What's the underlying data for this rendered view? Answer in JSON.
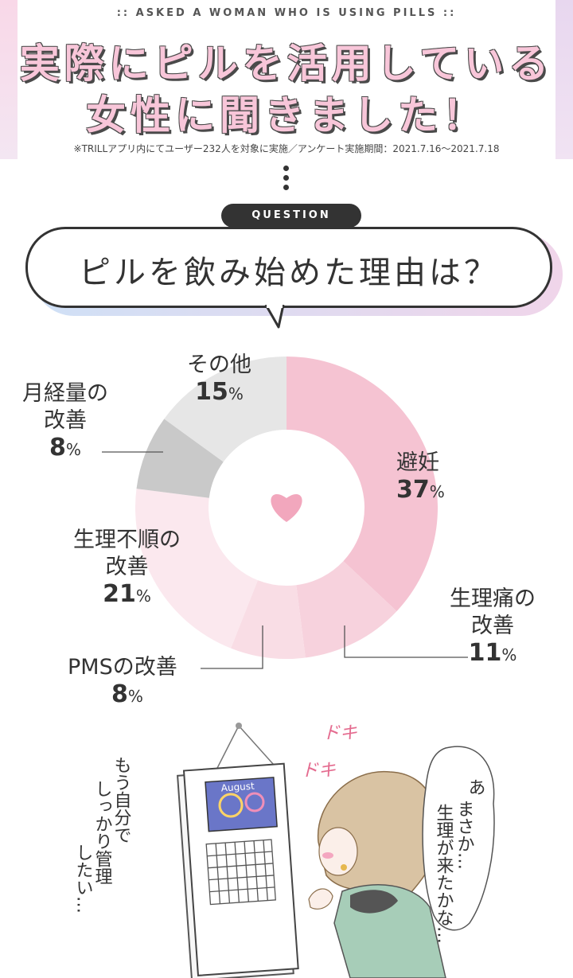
{
  "header": {
    "kicker": ":: ASKED A WOMAN WHO IS USING PILLS ::",
    "title_line1": "実際にピルを活用している",
    "title_line2": "女性に聞きました！",
    "survey_note": "※TRILLアプリ内にてユーザー232人を対象に実施／アンケート実施期間：2021.7.16〜2021.7.18"
  },
  "question": {
    "badge": "QUESTION",
    "text": "ピルを飲み始めた理由は？"
  },
  "chart_data": {
    "type": "pie",
    "title": "",
    "categories": [
      "避妊",
      "生理痛の改善",
      "PMSの改善",
      "生理不順の改善",
      "月経量の改善",
      "その他"
    ],
    "values": [
      37,
      11,
      8,
      21,
      8,
      15
    ],
    "unit": "%",
    "colors": [
      "#f5c3d2",
      "#f7d2dd",
      "#f9dde5",
      "#fbe8ee",
      "#c9c9c9",
      "#e6e6e6"
    ],
    "labels": [
      {
        "line1": "避妊",
        "line2": "",
        "pct": "37"
      },
      {
        "line1": "生理痛の",
        "line2": "改善",
        "pct": "11"
      },
      {
        "line1": "PMSの改善",
        "line2": "",
        "pct": "8"
      },
      {
        "line1": "生理不順の",
        "line2": "改善",
        "pct": "21"
      },
      {
        "line1": "月経量の",
        "line2": "改善",
        "pct": "8"
      },
      {
        "line1": "その他",
        "line2": "",
        "pct": "15"
      }
    ],
    "center_icon": "heart-icon",
    "percent_sign": "%"
  },
  "illustration": {
    "calendar_month": "August",
    "sfx": "ドキドキ",
    "speech_lines": [
      "あ",
      "まさか…",
      "生理が来たかな…"
    ],
    "thought_lines": [
      "もう自分で",
      "しっかり管理",
      "したい…"
    ]
  }
}
